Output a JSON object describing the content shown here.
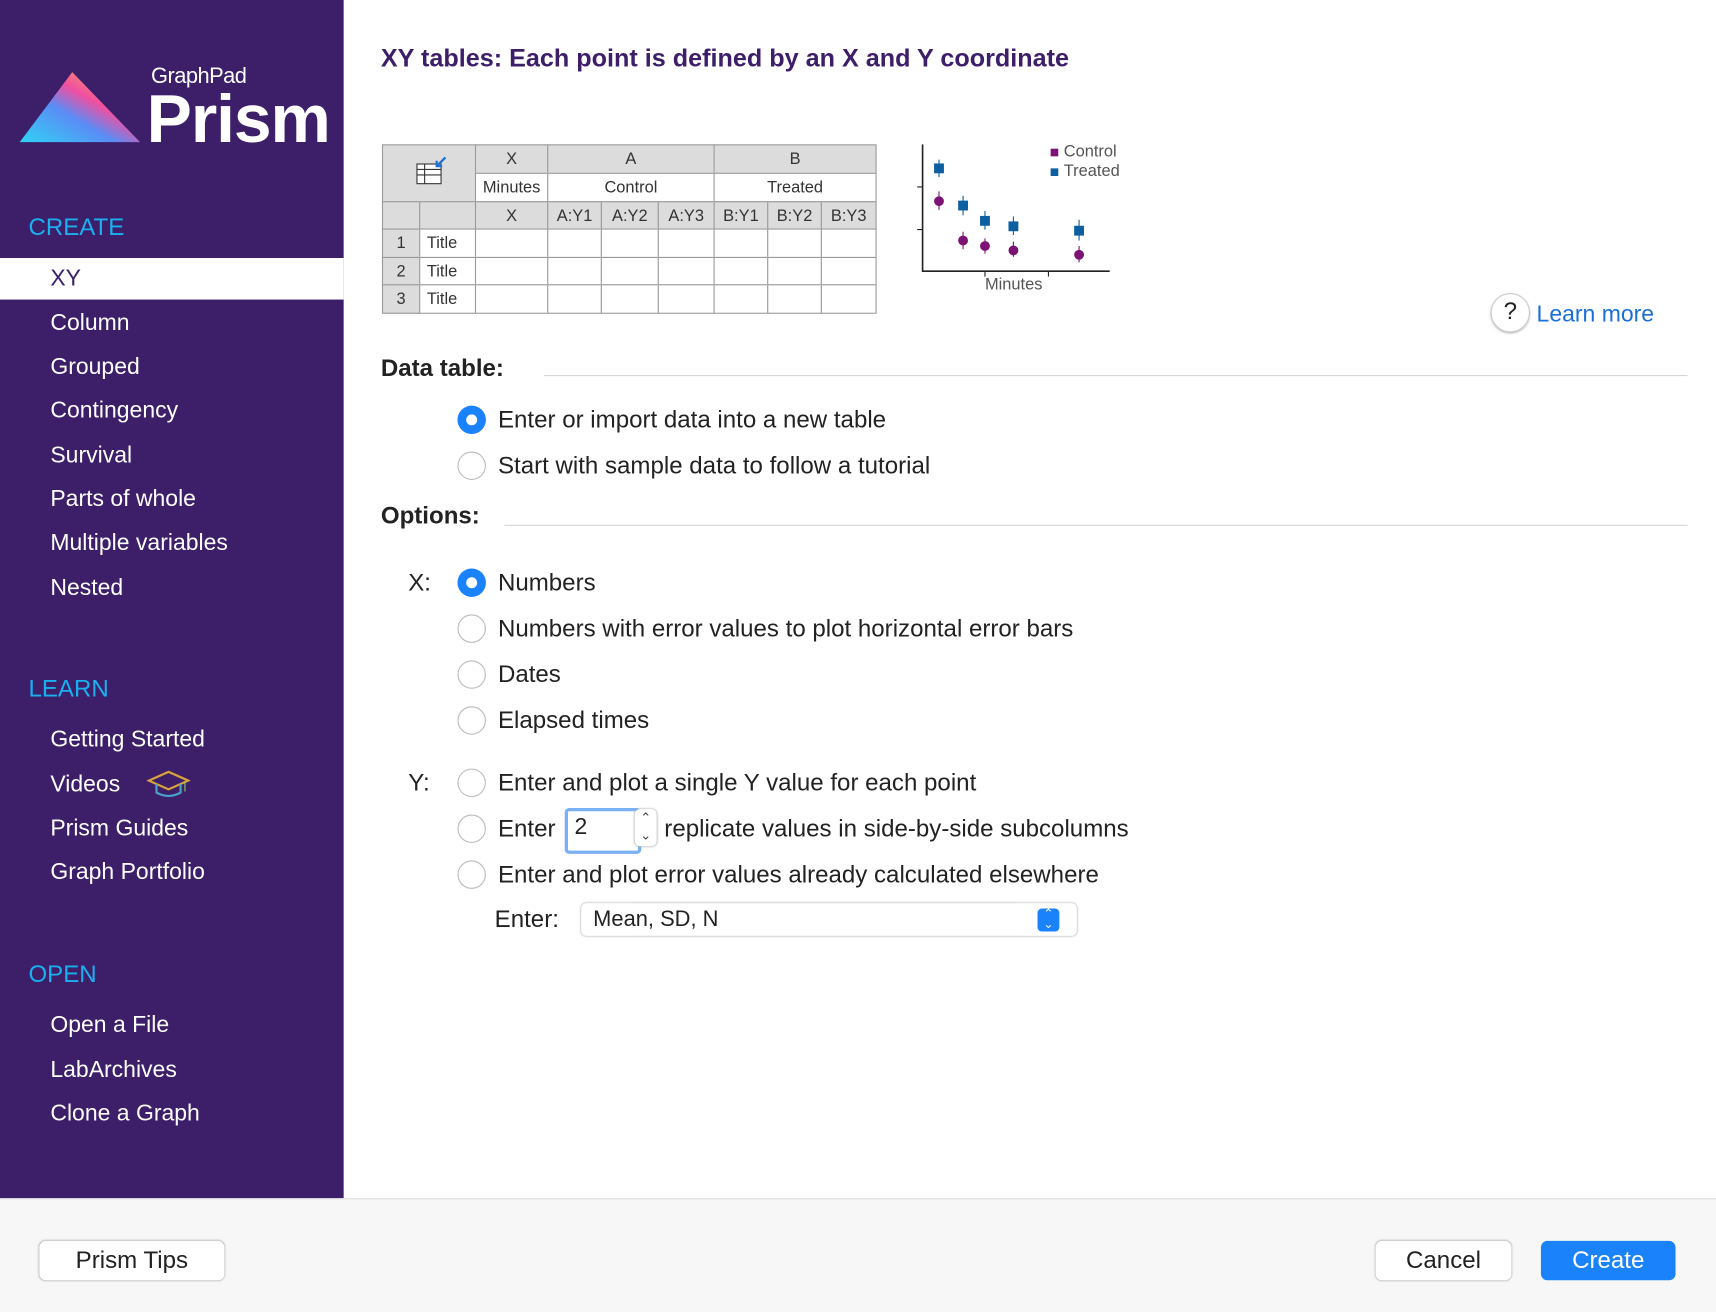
{
  "sidebar": {
    "logo": {
      "brand": "GraphPad",
      "product": "Prism"
    },
    "selected": "XY",
    "sections": [
      {
        "heading": "CREATE",
        "items": [
          "XY",
          "Column",
          "Grouped",
          "Contingency",
          "Survival",
          "Parts of whole",
          "Multiple variables",
          "Nested"
        ]
      },
      {
        "heading": "LEARN",
        "items": [
          "Getting Started",
          "Videos",
          "Prism Guides",
          "Graph Portfolio"
        ]
      },
      {
        "heading": "OPEN",
        "items": [
          "Open a File",
          "LabArchives",
          "Clone a Graph"
        ]
      }
    ]
  },
  "main": {
    "title": "XY tables: Each point is defined by an X and Y coordinate",
    "preview_table": {
      "groups": [
        "X",
        "A",
        "B"
      ],
      "group_titles": [
        "Minutes",
        "Control",
        "Treated"
      ],
      "subcolumns": [
        "X",
        "A:Y1",
        "A:Y2",
        "A:Y3",
        "B:Y1",
        "B:Y2",
        "B:Y3"
      ],
      "rows": [
        {
          "number": "1",
          "title": "Title"
        },
        {
          "number": "2",
          "title": "Title"
        },
        {
          "number": "3",
          "title": "Title"
        }
      ]
    },
    "preview_graph": {
      "legend": [
        "Control",
        "Treated"
      ],
      "x_label": "Minutes"
    },
    "help": "?",
    "learn_more": "Learn more",
    "data_table": {
      "heading": "Data table:",
      "choices": [
        "Enter or import data into a new table",
        "Start with sample data to follow a tutorial"
      ],
      "selected": 0
    },
    "options": {
      "heading": "Options:",
      "x": {
        "label": "X:",
        "choices": [
          "Numbers",
          "Numbers with error values to plot horizontal error bars",
          "Dates",
          "Elapsed times"
        ],
        "selected": 0
      },
      "y": {
        "label": "Y:",
        "choices": [
          "Enter and plot a single Y value for each point",
          "Enter and plot error values already calculated elsewhere"
        ],
        "replicates": {
          "before": "Enter",
          "value": "2",
          "after": "replicate values in side-by-side subcolumns"
        },
        "enter_label": "Enter:",
        "enter_select": "Mean, SD, N"
      }
    }
  },
  "footer": {
    "tips": "Prism Tips",
    "cancel": "Cancel",
    "create": "Create"
  }
}
